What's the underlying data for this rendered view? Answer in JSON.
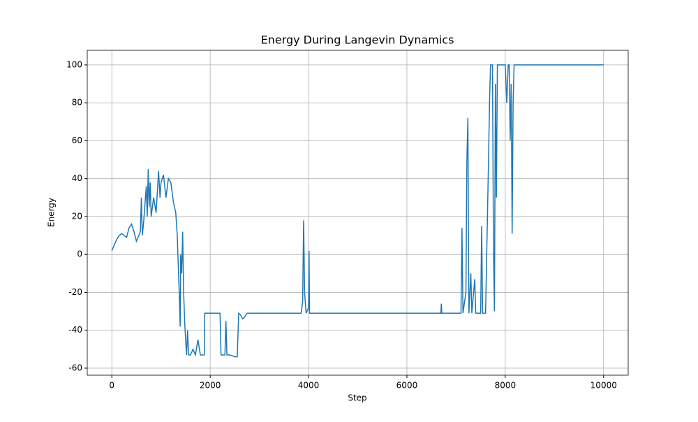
{
  "chart_data": {
    "type": "line",
    "title": "Energy During Langevin Dynamics",
    "x_label": "Step",
    "y_label": "Energy",
    "x": [
      0,
      50,
      100,
      150,
      200,
      250,
      300,
      350,
      400,
      450,
      500,
      550,
      580,
      600,
      620,
      650,
      700,
      720,
      740,
      760,
      780,
      800,
      850,
      900,
      950,
      980,
      1000,
      1050,
      1100,
      1150,
      1200,
      1250,
      1300,
      1330,
      1350,
      1370,
      1390,
      1400,
      1420,
      1440,
      1460,
      1480,
      1500,
      1520,
      1540,
      1560,
      1600,
      1650,
      1700,
      1750,
      1800,
      1850,
      1880,
      1890,
      1950,
      2000,
      2100,
      2200,
      2220,
      2300,
      2320,
      2340,
      2400,
      2500,
      2550,
      2580,
      2620,
      2660,
      2700,
      2750,
      3000,
      3500,
      3850,
      3880,
      3900,
      3920,
      3950,
      4000,
      4010,
      4020,
      5000,
      6000,
      6690,
      6700,
      6710,
      7100,
      7120,
      7140,
      7200,
      7220,
      7240,
      7260,
      7300,
      7320,
      7380,
      7400,
      7500,
      7520,
      7540,
      7600,
      7660,
      7680,
      7700,
      7740,
      7760,
      7780,
      7800,
      7820,
      7840,
      7900,
      7950,
      8000,
      8030,
      8060,
      8080,
      8100,
      8120,
      8140,
      8160,
      8180,
      10000
    ],
    "series": [
      {
        "name": "Energy",
        "color": "#1f77b4",
        "values": [
          2,
          5,
          8,
          10,
          11,
          10,
          9,
          14,
          16,
          12,
          7,
          10,
          12,
          30,
          10,
          18,
          36,
          20,
          45,
          25,
          38,
          20,
          30,
          22,
          44,
          30,
          38,
          42,
          30,
          40,
          38,
          28,
          22,
          10,
          -5,
          -20,
          -38,
          0,
          -10,
          12,
          -20,
          -35,
          -45,
          -53,
          -40,
          -53,
          -53,
          -50,
          -53,
          -45,
          -53,
          -53,
          -53,
          -31,
          -31,
          -31,
          -31,
          -31,
          -53,
          -53,
          -35,
          -53,
          -53,
          -54,
          -54,
          -31,
          -32,
          -34,
          -33,
          -31,
          -31,
          -31,
          -31,
          -25,
          18,
          -20,
          -31,
          -28,
          2,
          -31,
          -31,
          -31,
          -31,
          -26,
          -31,
          -31,
          14,
          -31,
          -20,
          50,
          72,
          -31,
          -10,
          -31,
          -13,
          -31,
          -31,
          15,
          -31,
          -31,
          50,
          80,
          100,
          100,
          5,
          -30,
          90,
          30,
          100,
          100,
          100,
          100,
          80,
          100,
          100,
          60,
          90,
          11,
          80,
          100,
          100
        ]
      }
    ],
    "xlim": [
      -500,
      10500
    ],
    "ylim": [
      -63.7,
      107.7
    ],
    "xticks": [
      0,
      2000,
      4000,
      6000,
      8000,
      10000
    ],
    "yticks": [
      -60,
      -40,
      -20,
      0,
      20,
      40,
      60,
      80,
      100
    ],
    "grid": true
  }
}
